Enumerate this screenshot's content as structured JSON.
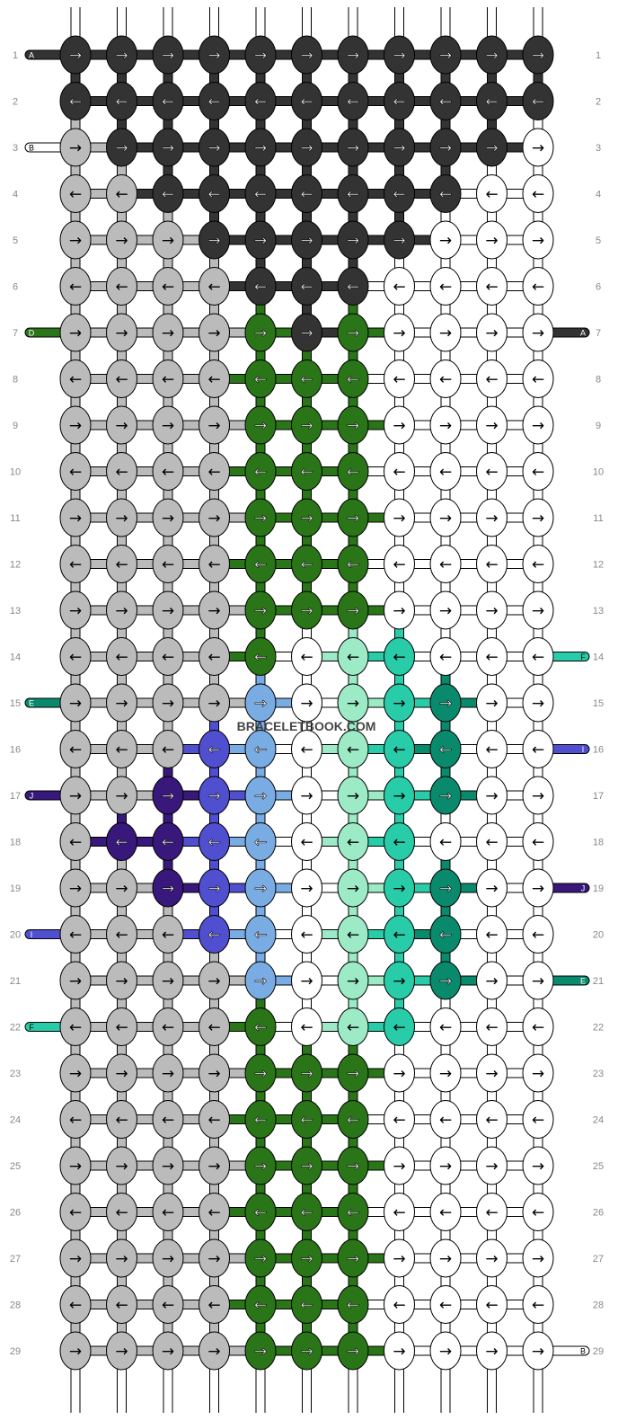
{
  "watermark": "BRACELETBOOK.COM",
  "palette": {
    "A": "#333333",
    "B": "#ffffff",
    "C": "#bbbbbb",
    "D": "#2a7518",
    "E": "#0a8a6c",
    "F": "#28cca8",
    "G": "#9ceac6",
    "H": "#7aace4",
    "I": "#4f4fd0",
    "J": "#38187a",
    "W": "#ffffff"
  },
  "dark_colors": [
    "A",
    "D",
    "E",
    "I",
    "J"
  ],
  "rows": [
    {
      "label": "1",
      "arrow": "→",
      "knots": "AAAAAAAAAAA"
    },
    {
      "label": "2",
      "arrow": "←",
      "knots": "AAAAAAAAAAA"
    },
    {
      "label": "3",
      "arrow": "→",
      "knots": "CAAAAAAAAAW"
    },
    {
      "label": "4",
      "arrow": "←",
      "knots": "CCAAAAAAAWW"
    },
    {
      "label": "5",
      "arrow": "→",
      "knots": "CCCAAAAAWWW"
    },
    {
      "label": "6",
      "arrow": "←",
      "knots": "CCCCAAAWWWW"
    },
    {
      "label": "7",
      "arrow": "→",
      "knots": "CCCCDADWWWW"
    },
    {
      "label": "8",
      "arrow": "←",
      "knots": "CCCCDDDWWWW"
    },
    {
      "label": "9",
      "arrow": "→",
      "knots": "CCCCDDDWWWW"
    },
    {
      "label": "10",
      "arrow": "←",
      "knots": "CCCCDDDWWWW"
    },
    {
      "label": "11",
      "arrow": "→",
      "knots": "CCCCDDDWWWW"
    },
    {
      "label": "12",
      "arrow": "←",
      "knots": "CCCCDDDWWWW"
    },
    {
      "label": "13",
      "arrow": "→",
      "knots": "CCCCDDDWWWW"
    },
    {
      "label": "14",
      "arrow": "←",
      "knots": "CCCCDWGFWWW"
    },
    {
      "label": "15",
      "arrow": "→",
      "knots": "CCCCHWGFEWW"
    },
    {
      "label": "16",
      "arrow": "←",
      "knots": "CCCIHWGFEWW"
    },
    {
      "label": "17",
      "arrow": "→",
      "knots": "CCJIHWGFEWW"
    },
    {
      "label": "18",
      "arrow": "←",
      "knots": "CJJIHWGFWWW"
    },
    {
      "label": "19",
      "arrow": "→",
      "knots": "CCJIHWGFEWW"
    },
    {
      "label": "20",
      "arrow": "←",
      "knots": "CCCIHWGFEWW"
    },
    {
      "label": "21",
      "arrow": "→",
      "knots": "CCCCHWGFEWW"
    },
    {
      "label": "22",
      "arrow": "←",
      "knots": "CCCCDWGFWWW"
    },
    {
      "label": "23",
      "arrow": "→",
      "knots": "CCCCDDDWWWW"
    },
    {
      "label": "24",
      "arrow": "←",
      "knots": "CCCCDDDWWWW"
    },
    {
      "label": "25",
      "arrow": "→",
      "knots": "CCCCDDDWWWW"
    },
    {
      "label": "26",
      "arrow": "←",
      "knots": "CCCCDDDWWWW"
    },
    {
      "label": "27",
      "arrow": "→",
      "knots": "CCCCDDDWWWW"
    },
    {
      "label": "28",
      "arrow": "←",
      "knots": "CCCCDDDWWWW"
    },
    {
      "label": "29",
      "arrow": "→",
      "knots": "CCCCDDDWWWW"
    }
  ],
  "strand_labels": {
    "left": [
      {
        "row": 1,
        "text": "A",
        "color": "A"
      },
      {
        "row": 3,
        "text": "B",
        "color": "B"
      },
      {
        "row": 7,
        "text": "D",
        "color": "D"
      },
      {
        "row": 15,
        "text": "E",
        "color": "E"
      },
      {
        "row": 17,
        "text": "J",
        "color": "J"
      },
      {
        "row": 20,
        "text": "I",
        "color": "I"
      },
      {
        "row": 22,
        "text": "F",
        "color": "F"
      }
    ],
    "right": [
      {
        "row": 7,
        "text": "A",
        "color": "A"
      },
      {
        "row": 14,
        "text": "F",
        "color": "F"
      },
      {
        "row": 16,
        "text": "I",
        "color": "I"
      },
      {
        "row": 19,
        "text": "J",
        "color": "J"
      },
      {
        "row": 21,
        "text": "E",
        "color": "E"
      },
      {
        "row": 29,
        "text": "B",
        "color": "B"
      }
    ]
  }
}
